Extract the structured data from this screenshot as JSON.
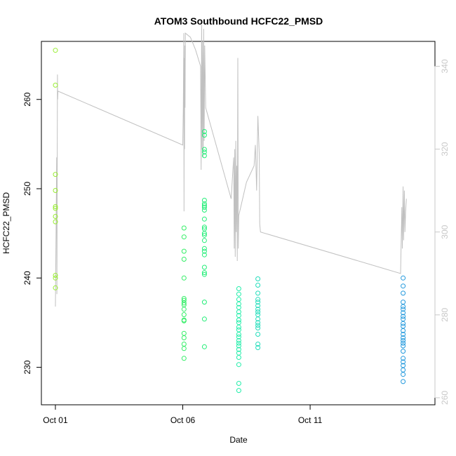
{
  "chart_data": {
    "type": "scatter",
    "title": "ATOM3 Southbound HCFC22_PMSD",
    "xlabel": "Date",
    "ylabel": "HCFC22_PMSD",
    "x_ticks": [
      "Oct 01",
      "Oct 06",
      "Oct 11"
    ],
    "x_tick_days": [
      1,
      6,
      11
    ],
    "xlim": [
      0.45,
      15.9
    ],
    "ylim": [
      225.8,
      266.5
    ],
    "y_ticks": [
      230,
      240,
      250,
      260
    ],
    "y2lim": [
      258.3,
      346.0
    ],
    "y2_ticks": [
      260,
      280,
      300,
      320,
      340
    ],
    "grid": false,
    "legend": "none",
    "colors": {
      "oct01": "#99ee33",
      "oct06": "#33ee66",
      "oct07": "#22ee77",
      "oct08": "#22eeaa",
      "oct09": "#22ddbb",
      "oct14": "#2299dd",
      "line": "#c0c0c0",
      "axis": "#000000",
      "right_axis": "#c8c8c8"
    },
    "series": [
      {
        "group": "oct01",
        "x": 1.0,
        "y": [
          265.5,
          261.6,
          251.6,
          249.8,
          248.0,
          247.8,
          246.9,
          246.3,
          240.3,
          240.0,
          238.9
        ]
      },
      {
        "group": "oct06",
        "x": 6.05,
        "y": [
          245.6,
          244.6,
          243.0,
          242.1,
          240.0,
          237.7,
          237.5,
          237.2,
          237.0,
          236.5,
          235.9,
          235.3,
          235.2,
          233.8,
          233.3,
          232.6,
          232.1,
          231.0
        ]
      },
      {
        "group": "oct07",
        "x": 6.85,
        "y": [
          256.4,
          256.0,
          254.4,
          254.1,
          253.7,
          248.7,
          248.3,
          248.1,
          247.9,
          247.6,
          246.6,
          245.7,
          245.5,
          245.0,
          244.8,
          244.2,
          243.3,
          243.0,
          242.6,
          241.2,
          240.6,
          240.4,
          237.3,
          235.4,
          232.3
        ]
      },
      {
        "group": "oct08",
        "x": 8.2,
        "y": [
          238.8,
          238.2,
          237.6,
          237.1,
          236.7,
          236.2,
          235.8,
          235.3,
          235.0,
          234.5,
          234.2,
          233.7,
          233.4,
          233.0,
          232.7,
          232.4,
          232.0,
          231.6,
          231.1,
          230.3,
          228.2,
          227.4
        ]
      },
      {
        "group": "oct09",
        "x": 8.95,
        "y": [
          239.9,
          239.2,
          238.3,
          237.6,
          237.3,
          236.9,
          236.5,
          236.2,
          235.9,
          235.4,
          235.0,
          234.7,
          234.4,
          233.7,
          232.6,
          232.2
        ]
      },
      {
        "group": "oct14",
        "x": 14.65,
        "y": [
          240.0,
          239.1,
          238.3,
          237.3,
          236.8,
          236.5,
          236.1,
          235.7,
          235.4,
          234.9,
          234.6,
          234.1,
          233.7,
          233.3,
          233.0,
          232.7,
          232.4,
          231.8,
          231.0,
          230.6,
          230.2,
          229.7,
          229.2,
          228.4
        ]
      }
    ],
    "line_series": {
      "name": "",
      "axis": "right",
      "points": [
        [
          1.0,
          282
        ],
        [
          1.05,
          318
        ],
        [
          1.06,
          285
        ],
        [
          1.08,
          338
        ],
        [
          1.09,
          332
        ],
        [
          1.1,
          334
        ],
        [
          6.0,
          321
        ],
        [
          6.02,
          330
        ],
        [
          6.04,
          348
        ],
        [
          6.05,
          305
        ],
        [
          6.06,
          342
        ],
        [
          6.07,
          320
        ],
        [
          6.08,
          345
        ],
        [
          6.09,
          330
        ],
        [
          6.1,
          348
        ],
        [
          6.3,
          347
        ],
        [
          6.5,
          344
        ],
        [
          6.7,
          340
        ],
        [
          6.72,
          315
        ],
        [
          6.74,
          350
        ],
        [
          6.76,
          320
        ],
        [
          6.78,
          346
        ],
        [
          6.8,
          318
        ],
        [
          6.82,
          349
        ],
        [
          6.84,
          322
        ],
        [
          6.86,
          345
        ],
        [
          6.9,
          330
        ],
        [
          7.9,
          308
        ],
        [
          8.0,
          318
        ],
        [
          8.02,
          296
        ],
        [
          8.04,
          320
        ],
        [
          8.06,
          294
        ],
        [
          8.08,
          322
        ],
        [
          8.1,
          300
        ],
        [
          8.12,
          316
        ],
        [
          8.14,
          293
        ],
        [
          8.16,
          342
        ],
        [
          8.18,
          296
        ],
        [
          8.2,
          304
        ],
        [
          8.5,
          312
        ],
        [
          8.8,
          316
        ],
        [
          8.85,
          321
        ],
        [
          8.9,
          310
        ],
        [
          8.95,
          328
        ],
        [
          9.0,
          319
        ],
        [
          9.02,
          302
        ],
        [
          9.05,
          300
        ],
        [
          14.55,
          290
        ],
        [
          14.6,
          306
        ],
        [
          14.62,
          296
        ],
        [
          14.65,
          311
        ],
        [
          14.67,
          298
        ],
        [
          14.7,
          310
        ],
        [
          14.72,
          300
        ],
        [
          14.75,
          305
        ],
        [
          14.78,
          308
        ]
      ]
    }
  }
}
